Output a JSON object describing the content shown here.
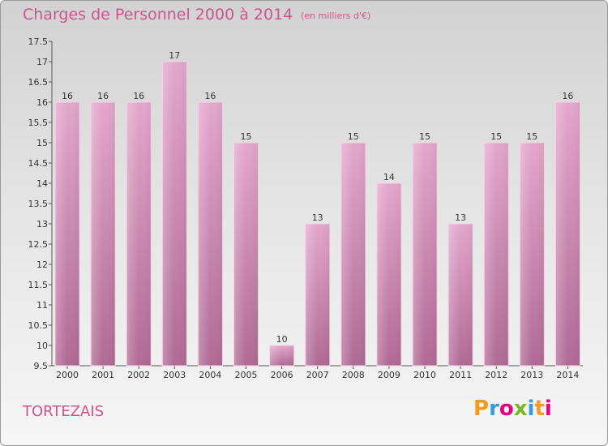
{
  "chart_data": {
    "type": "bar",
    "title": "Charges de Personnel 2000 à 2014",
    "subtitle": "(en milliers d'€)",
    "categories": [
      "2000",
      "2001",
      "2002",
      "2003",
      "2004",
      "2005",
      "2006",
      "2007",
      "2008",
      "2009",
      "2010",
      "2011",
      "2012",
      "2013",
      "2014"
    ],
    "values": [
      16,
      16,
      16,
      17,
      16,
      15,
      10,
      13,
      15,
      14,
      15,
      13,
      15,
      15,
      16
    ],
    "ylim": [
      9.5,
      17.5
    ],
    "yticks": [
      "9.5",
      "10",
      "10.5",
      "11",
      "11.5",
      "12",
      "12.5",
      "13",
      "13.5",
      "14",
      "14.5",
      "15",
      "15.5",
      "16",
      "16.5",
      "17",
      "17.5"
    ],
    "grid": false,
    "bar_color": "#d58bb5"
  },
  "commune_name": "TORTEZAIS",
  "logo": {
    "text": "Proxiti",
    "letter_colors": [
      "#f29b1e",
      "#3a9ad9",
      "#e6007e",
      "#76b82a",
      "#3a9ad9",
      "#f29b1e",
      "#e6007e"
    ]
  }
}
